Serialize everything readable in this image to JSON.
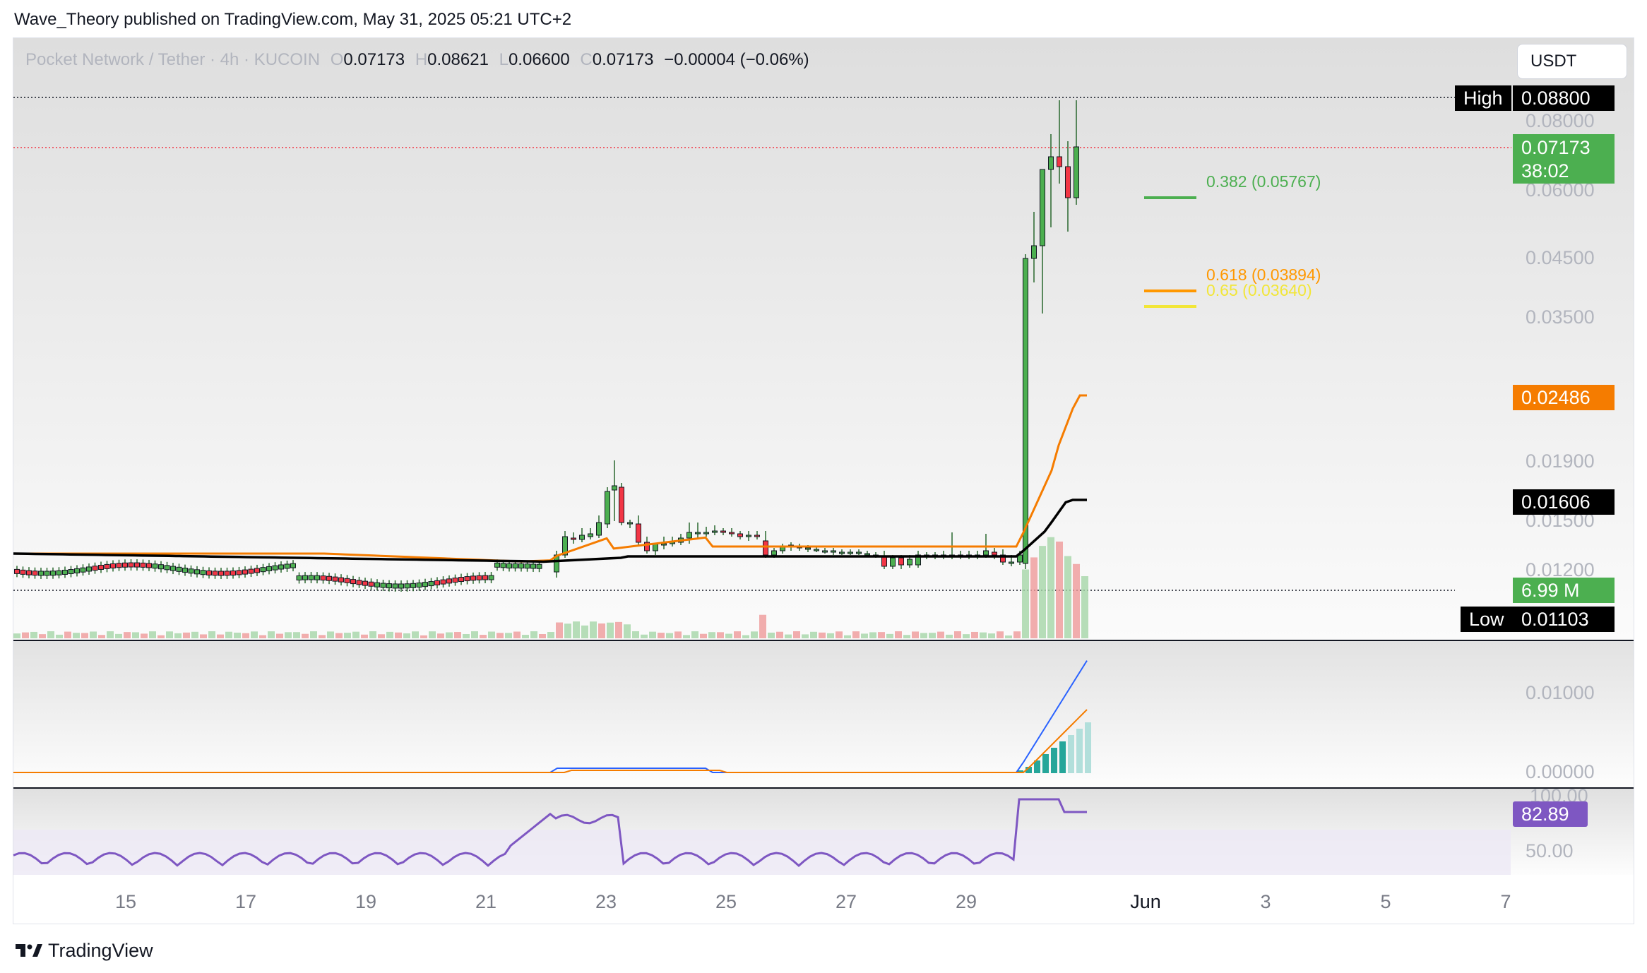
{
  "header": {
    "publish_line": "Wave_Theory published on TradingView.com, May 31, 2025 05:21 UTC+2"
  },
  "legend": {
    "symbol": "Pocket Network / Tether · 4h · KUCOIN",
    "o_label": "O",
    "o_value": "0.07173",
    "h_label": "H",
    "h_value": "0.08621",
    "l_label": "L",
    "l_value": "0.06600",
    "c_label": "C",
    "c_value": "0.07173",
    "change": "−0.00004 (−0.06%)"
  },
  "currency_select": {
    "value": "USDT"
  },
  "price_axis": {
    "labels": [
      "0.08000",
      "0.06000",
      "0.04500",
      "0.03500",
      "0.01900",
      "0.01500",
      "0.01200"
    ],
    "high_label": "High",
    "high_value": "0.08800",
    "last_price": "0.07173",
    "countdown": "38:02",
    "ema_orange": "0.02486",
    "ema_black": "0.01606",
    "volume": "6.99 M",
    "low_label": "Low",
    "low_value": "0.01103"
  },
  "fibonacci": {
    "levels": [
      {
        "label": "0.382 (0.05767)",
        "color": "#4caf50"
      },
      {
        "label": "0.618 (0.03894)",
        "color": "#ff9800"
      },
      {
        "label": "0.65 (0.03640)",
        "color": "#f2e638"
      }
    ]
  },
  "macd_axis": {
    "labels": [
      "0.01000",
      "0.00000"
    ]
  },
  "rsi_axis": {
    "labels": [
      "100.00",
      "50.00"
    ],
    "value": "82.89"
  },
  "time_axis": {
    "labels": [
      "15",
      "17",
      "19",
      "21",
      "23",
      "25",
      "27",
      "29",
      "Jun",
      "3",
      "5",
      "7"
    ]
  },
  "brand": {
    "name": "TradingView"
  },
  "colors": {
    "up": "#26a69a",
    "up_candle": "#4caf50",
    "down_candle": "#f23645",
    "ema_orange": "#f57c00",
    "ema_black": "#000000",
    "rsi": "#7e57c2",
    "macd": "#2962ff"
  },
  "chart_data": {
    "type": "candlestick",
    "symbol": "Pocket Network / Tether · 4h · KUCOIN",
    "price_range": [
      0.011,
      0.088
    ],
    "price_ticks": [
      0.012,
      0.015,
      0.019,
      0.035,
      0.045,
      0.06,
      0.08
    ],
    "high": 0.088,
    "low": 0.01103,
    "last": 0.07173,
    "x_ticks": [
      "15",
      "17",
      "19",
      "21",
      "23",
      "25",
      "27",
      "29",
      "Jun",
      "3",
      "5",
      "7"
    ],
    "ema_values": [
      0.02486,
      0.01606
    ],
    "volume": "6.99 M",
    "fib_levels": [
      {
        "ratio": 0.382,
        "price": 0.05767
      },
      {
        "ratio": 0.618,
        "price": 0.03894
      },
      {
        "ratio": 0.65,
        "price": 0.0364
      }
    ],
    "rsi_last": 82.89,
    "rsi_range": [
      0,
      100
    ]
  }
}
